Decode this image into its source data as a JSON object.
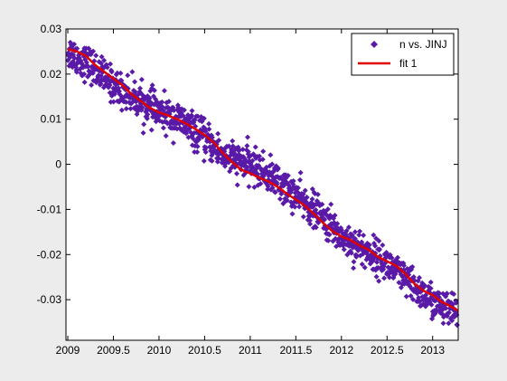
{
  "chart_data": {
    "type": "scatter",
    "title": "",
    "xlabel": "",
    "ylabel": "",
    "xlim": [
      2008.98,
      2013.28
    ],
    "ylim": [
      -0.039,
      0.03
    ],
    "x_ticks": [
      2009,
      2009.5,
      2010,
      2010.5,
      2011,
      2011.5,
      2012,
      2012.5,
      2013
    ],
    "x_tick_labels": [
      "2009",
      "2009.5",
      "2010",
      "2010.5",
      "2011",
      "2011.5",
      "2012",
      "2012.5",
      "2013"
    ],
    "y_ticks": [
      0.03,
      0.02,
      0.01,
      0,
      -0.01,
      -0.02,
      -0.03
    ],
    "y_tick_labels": [
      "0.03",
      "0.02",
      "0.01",
      "0",
      "-0.01",
      "-0.02",
      "-0.03"
    ],
    "grid": false,
    "legend_position": "top-right",
    "colors": {
      "points": "#5a1aa8",
      "fit": "#e00000",
      "axes": "#000000",
      "plot_background": "#ffffff",
      "figure_background": "#ececec"
    },
    "series": [
      {
        "name": "n vs. JINJ",
        "kind": "scatter",
        "marker": "diamond",
        "trend_x": [
          2009.0,
          2009.25,
          2009.5,
          2009.75,
          2010.0,
          2010.25,
          2010.5,
          2010.75,
          2011.0,
          2011.25,
          2011.5,
          2011.75,
          2012.0,
          2012.25,
          2012.5,
          2012.75,
          2013.0,
          2013.27
        ],
        "trend_y": [
          0.025,
          0.022,
          0.0175,
          0.0145,
          0.0115,
          0.0095,
          0.0055,
          0.0015,
          0.0,
          -0.003,
          -0.007,
          -0.011,
          -0.016,
          -0.019,
          -0.022,
          -0.0265,
          -0.0305,
          -0.0335
        ],
        "spread": 0.0019
      },
      {
        "name": "fit 1",
        "kind": "line",
        "x": [
          2009.0,
          2009.1,
          2009.2,
          2009.3,
          2009.4,
          2009.5,
          2009.6,
          2009.7,
          2009.8,
          2009.9,
          2010.0,
          2010.1,
          2010.2,
          2010.3,
          2010.4,
          2010.5,
          2010.6,
          2010.7,
          2010.8,
          2010.9,
          2011.0,
          2011.1,
          2011.2,
          2011.3,
          2011.4,
          2011.5,
          2011.6,
          2011.7,
          2011.8,
          2011.9,
          2012.0,
          2012.1,
          2012.2,
          2012.3,
          2012.4,
          2012.5,
          2012.6,
          2012.7,
          2012.8,
          2012.9,
          2013.0,
          2013.1,
          2013.2,
          2013.28
        ],
        "y": [
          0.0255,
          0.025,
          0.024,
          0.022,
          0.0205,
          0.019,
          0.0175,
          0.0155,
          0.014,
          0.0125,
          0.0115,
          0.0108,
          0.01,
          0.009,
          0.0078,
          0.0065,
          0.0048,
          0.0025,
          0.0005,
          -0.0012,
          -0.002,
          -0.003,
          -0.0038,
          -0.005,
          -0.0065,
          -0.0078,
          -0.0092,
          -0.011,
          -0.013,
          -0.0148,
          -0.016,
          -0.0168,
          -0.018,
          -0.019,
          -0.0205,
          -0.0215,
          -0.0225,
          -0.0243,
          -0.0265,
          -0.028,
          -0.029,
          -0.0305,
          -0.0315,
          -0.0325
        ]
      }
    ]
  }
}
